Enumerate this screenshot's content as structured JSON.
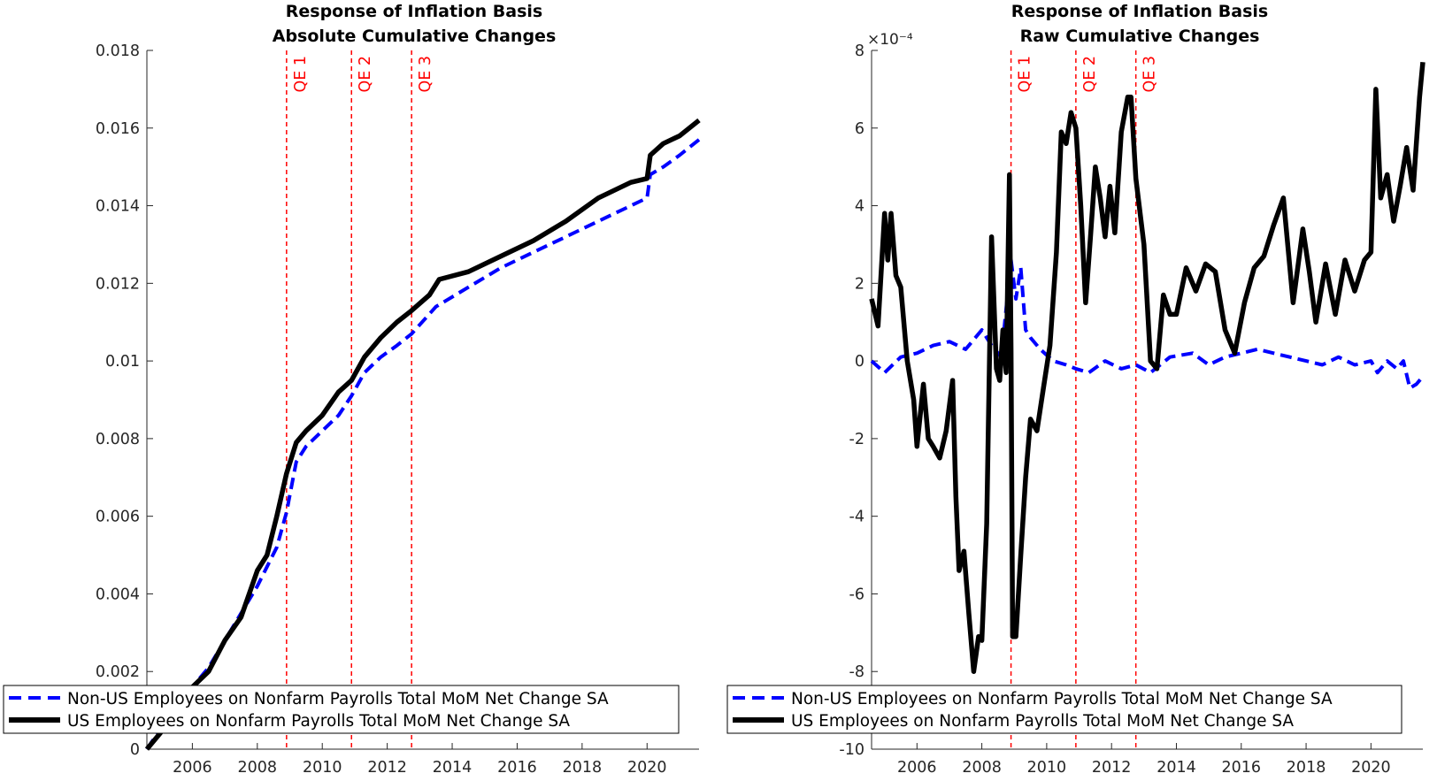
{
  "chart_data": [
    {
      "type": "line",
      "title": "Response of Inflation Basis",
      "subtitle": "Absolute Cumulative Changes",
      "xlim": [
        2004.6,
        2021.6
      ],
      "ylim": [
        0,
        0.018
      ],
      "xticks": [
        2006,
        2008,
        2010,
        2012,
        2014,
        2016,
        2018,
        2020
      ],
      "yticks": [
        0,
        0.002,
        0.004,
        0.006,
        0.008,
        0.01,
        0.012,
        0.014,
        0.016,
        0.018
      ],
      "ytick_labels": [
        "0",
        "0.002",
        "0.004",
        "0.006",
        "0.008",
        "0.01",
        "0.012",
        "0.014",
        "0.016",
        "0.018"
      ],
      "exponent_label": "",
      "vlines": [
        {
          "x": 2008.9,
          "label": "QE 1"
        },
        {
          "x": 2010.9,
          "label": "QE 2"
        },
        {
          "x": 2012.75,
          "label": "QE 3"
        }
      ],
      "legend_position": "bottom-left",
      "series": [
        {
          "name": "Non-US Employees on Nonfarm Payrolls Total MoM Net Change SA",
          "color": "#0000ff",
          "style": "dashed",
          "x": [
            2004.6,
            2005.0,
            2005.5,
            2006.0,
            2006.5,
            2007.0,
            2007.5,
            2008.0,
            2008.3,
            2008.6,
            2008.9,
            2009.2,
            2009.5,
            2010.0,
            2010.5,
            2010.9,
            2011.3,
            2011.8,
            2012.3,
            2012.75,
            2013.5,
            2014.5,
            2015.5,
            2016.5,
            2017.5,
            2018.5,
            2019.5,
            2020.0,
            2020.1,
            2020.5,
            2021.0,
            2021.6
          ],
          "y": [
            0.0,
            0.0005,
            0.0011,
            0.0016,
            0.0021,
            0.0028,
            0.0035,
            0.0042,
            0.0047,
            0.0052,
            0.0061,
            0.0074,
            0.0078,
            0.0082,
            0.0086,
            0.0091,
            0.0097,
            0.0101,
            0.0104,
            0.0107,
            0.0114,
            0.0119,
            0.0124,
            0.0128,
            0.0132,
            0.0136,
            0.014,
            0.0142,
            0.0148,
            0.015,
            0.0153,
            0.0157
          ]
        },
        {
          "name": "US Employees on Nonfarm Payrolls Total MoM Net Change SA",
          "color": "#000000",
          "style": "solid",
          "x": [
            2004.6,
            2005.0,
            2005.5,
            2006.0,
            2006.5,
            2007.0,
            2007.5,
            2008.0,
            2008.3,
            2008.6,
            2008.9,
            2009.2,
            2009.5,
            2010.0,
            2010.5,
            2010.9,
            2011.3,
            2011.8,
            2012.3,
            2012.75,
            2013.3,
            2013.6,
            2014.5,
            2015.5,
            2016.5,
            2017.5,
            2018.5,
            2019.5,
            2020.0,
            2020.1,
            2020.5,
            2021.0,
            2021.6
          ],
          "y": [
            0.0,
            0.0004,
            0.001,
            0.0016,
            0.002,
            0.0028,
            0.0034,
            0.0046,
            0.005,
            0.006,
            0.0071,
            0.0079,
            0.0082,
            0.0086,
            0.0092,
            0.0095,
            0.0101,
            0.0106,
            0.011,
            0.0113,
            0.0117,
            0.0121,
            0.0123,
            0.0127,
            0.0131,
            0.0136,
            0.0142,
            0.0146,
            0.0147,
            0.0153,
            0.0156,
            0.0158,
            0.0162
          ]
        }
      ]
    },
    {
      "type": "line",
      "title": "Response of Inflation Basis",
      "subtitle": "Raw Cumulative Changes",
      "xlim": [
        2004.6,
        2021.6
      ],
      "ylim": [
        -10,
        8
      ],
      "xticks": [
        2006,
        2008,
        2010,
        2012,
        2014,
        2016,
        2018,
        2020
      ],
      "yticks": [
        -10,
        -8,
        -6,
        -4,
        -2,
        0,
        2,
        4,
        6,
        8
      ],
      "ytick_labels": [
        "-10",
        "-8",
        "-6",
        "-4",
        "-2",
        "0",
        "2",
        "4",
        "6",
        "8"
      ],
      "exponent_label": "×10⁻⁴",
      "vlines": [
        {
          "x": 2008.9,
          "label": "QE 1"
        },
        {
          "x": 2010.9,
          "label": "QE 2"
        },
        {
          "x": 2012.75,
          "label": "QE 3"
        }
      ],
      "legend_position": "bottom-left",
      "series": [
        {
          "name": "Non-US Employees on Nonfarm Payrolls Total MoM Net Change SA",
          "color": "#0000ff",
          "style": "dashed",
          "x": [
            2004.6,
            2005.0,
            2005.5,
            2006.0,
            2006.5,
            2007.0,
            2007.5,
            2008.0,
            2008.3,
            2008.6,
            2008.9,
            2009.05,
            2009.2,
            2009.35,
            2009.5,
            2009.8,
            2010.2,
            2010.6,
            2010.9,
            2011.3,
            2011.8,
            2012.3,
            2012.75,
            2013.2,
            2013.8,
            2014.5,
            2015.0,
            2015.5,
            2016.0,
            2016.5,
            2017.0,
            2017.5,
            2018.0,
            2018.5,
            2019.0,
            2019.5,
            2020.0,
            2020.2,
            2020.5,
            2020.8,
            2021.0,
            2021.2,
            2021.4,
            2021.6
          ],
          "y": [
            0.0,
            -0.3,
            0.1,
            0.2,
            0.4,
            0.5,
            0.3,
            0.8,
            0.4,
            0.1,
            2.6,
            1.6,
            2.4,
            0.8,
            0.6,
            0.3,
            0.0,
            -0.1,
            -0.2,
            -0.3,
            0.0,
            -0.2,
            -0.1,
            -0.3,
            0.1,
            0.2,
            -0.1,
            0.1,
            0.2,
            0.3,
            0.2,
            0.1,
            0.0,
            -0.1,
            0.1,
            -0.1,
            0.0,
            -0.3,
            0.0,
            -0.2,
            0.0,
            -0.7,
            -0.6,
            -0.4
          ]
        },
        {
          "name": "US Employees on Nonfarm Payrolls Total MoM Net Change SA",
          "color": "#000000",
          "style": "solid",
          "x": [
            2004.6,
            2004.8,
            2005.0,
            2005.1,
            2005.2,
            2005.35,
            2005.5,
            2005.7,
            2005.9,
            2006.0,
            2006.2,
            2006.35,
            2006.5,
            2006.7,
            2006.9,
            2007.1,
            2007.2,
            2007.3,
            2007.45,
            2007.6,
            2007.75,
            2007.9,
            2008.0,
            2008.15,
            2008.3,
            2008.45,
            2008.55,
            2008.65,
            2008.75,
            2008.85,
            2008.9,
            2008.95,
            2009.05,
            2009.2,
            2009.35,
            2009.5,
            2009.7,
            2009.9,
            2010.1,
            2010.3,
            2010.45,
            2010.6,
            2010.75,
            2010.9,
            2011.05,
            2011.2,
            2011.35,
            2011.5,
            2011.65,
            2011.8,
            2011.95,
            2012.1,
            2012.3,
            2012.5,
            2012.6,
            2012.75,
            2013.0,
            2013.2,
            2013.4,
            2013.6,
            2013.8,
            2014.0,
            2014.3,
            2014.6,
            2014.9,
            2015.2,
            2015.5,
            2015.8,
            2016.1,
            2016.4,
            2016.7,
            2017.0,
            2017.3,
            2017.6,
            2017.9,
            2018.1,
            2018.3,
            2018.6,
            2018.9,
            2019.2,
            2019.5,
            2019.8,
            2020.0,
            2020.15,
            2020.3,
            2020.5,
            2020.7,
            2020.9,
            2021.1,
            2021.3,
            2021.5,
            2021.6
          ],
          "y": [
            1.6,
            0.9,
            3.8,
            2.6,
            3.8,
            2.2,
            1.9,
            0.0,
            -1.0,
            -2.2,
            -0.6,
            -2.0,
            -2.2,
            -2.5,
            -1.8,
            -0.5,
            -3.5,
            -5.4,
            -4.9,
            -6.5,
            -8.0,
            -7.1,
            -7.2,
            -4.2,
            3.2,
            -0.2,
            -0.5,
            0.8,
            -0.3,
            4.8,
            0.3,
            -7.1,
            -7.1,
            -5.0,
            -3.0,
            -1.5,
            -1.8,
            -0.7,
            0.4,
            2.8,
            5.9,
            5.6,
            6.4,
            6.0,
            4.0,
            1.5,
            3.2,
            5.0,
            4.2,
            3.2,
            4.5,
            3.3,
            5.9,
            6.8,
            6.8,
            4.7,
            3.0,
            0.0,
            -0.2,
            1.7,
            1.2,
            1.2,
            2.4,
            1.8,
            2.5,
            2.3,
            0.8,
            0.2,
            1.5,
            2.4,
            2.7,
            3.5,
            4.2,
            1.5,
            3.4,
            2.3,
            1.0,
            2.5,
            1.2,
            2.6,
            1.8,
            2.6,
            2.8,
            7.0,
            4.2,
            4.8,
            3.6,
            4.5,
            5.5,
            4.4,
            6.8,
            7.7
          ]
        }
      ]
    }
  ]
}
